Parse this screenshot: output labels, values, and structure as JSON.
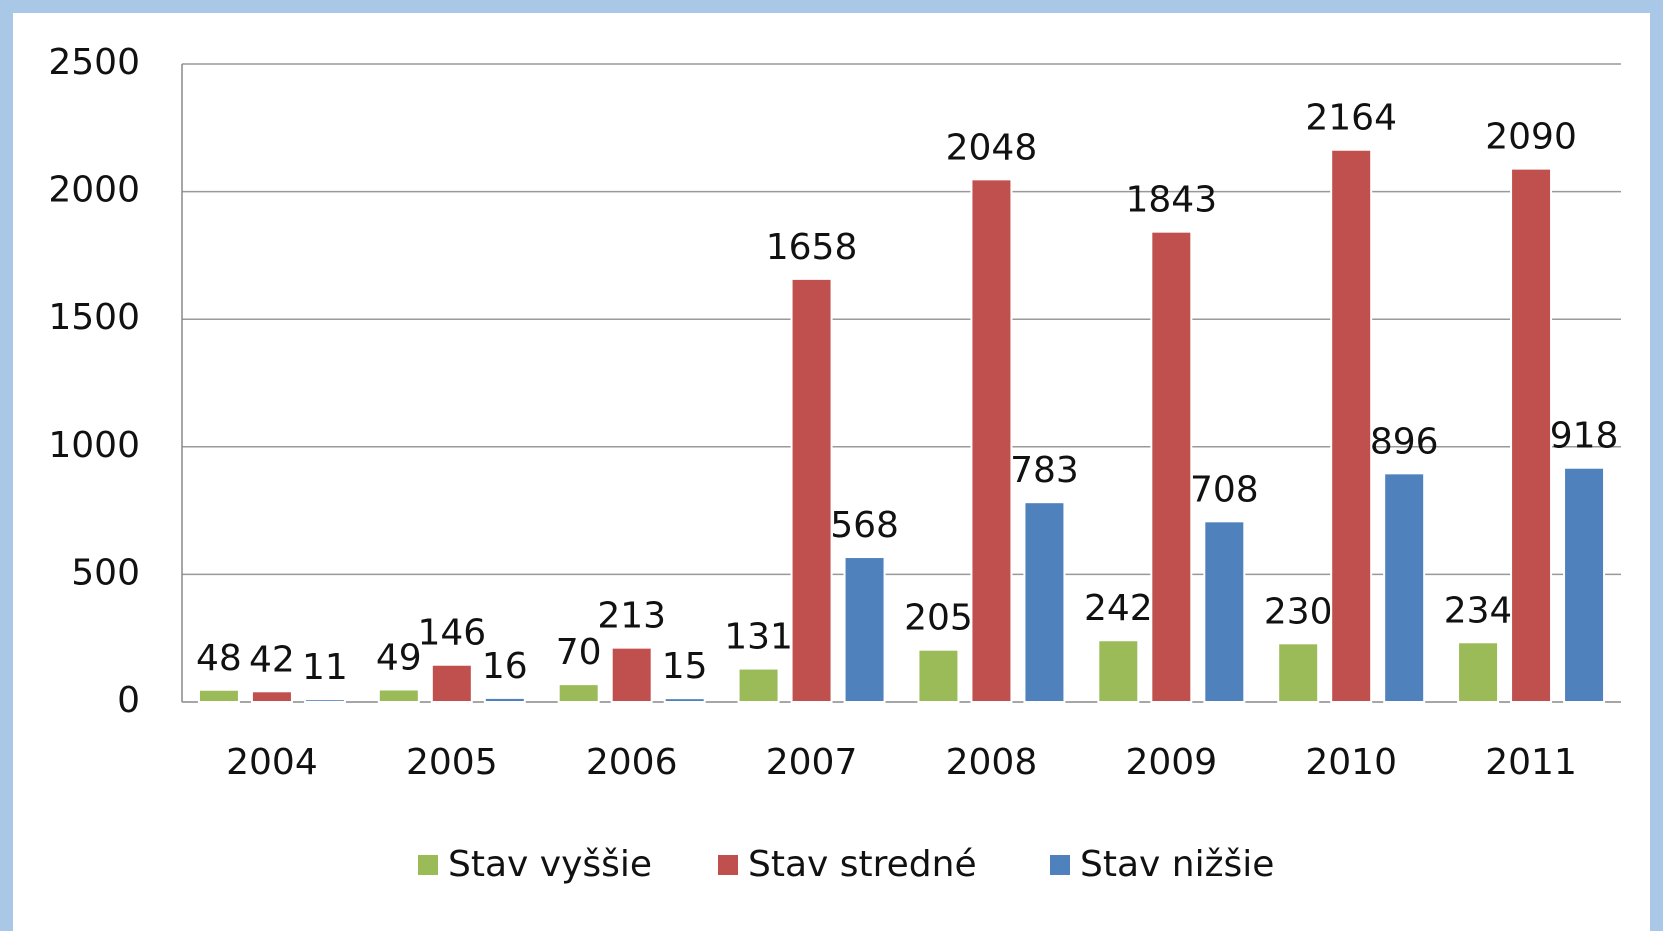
{
  "chart_data": {
    "type": "bar",
    "categories": [
      "2004",
      "2005",
      "2006",
      "2007",
      "2008",
      "2009",
      "2010",
      "2011"
    ],
    "series": [
      {
        "name": "Stav vyššie",
        "color": "#9bbb59",
        "values": [
          48,
          49,
          70,
          131,
          205,
          242,
          230,
          234
        ]
      },
      {
        "name": "Stav stredné",
        "color": "#c0504d",
        "values": [
          42,
          146,
          213,
          1658,
          2048,
          1843,
          2164,
          2090
        ]
      },
      {
        "name": "Stav nižšie",
        "color": "#4f81bd",
        "values": [
          11,
          16,
          15,
          568,
          783,
          708,
          896,
          918
        ]
      }
    ],
    "ylim": [
      0,
      2500
    ],
    "yticks": [
      0,
      500,
      1000,
      1500,
      2000,
      2500
    ],
    "grid": true,
    "legend": "bottom"
  }
}
